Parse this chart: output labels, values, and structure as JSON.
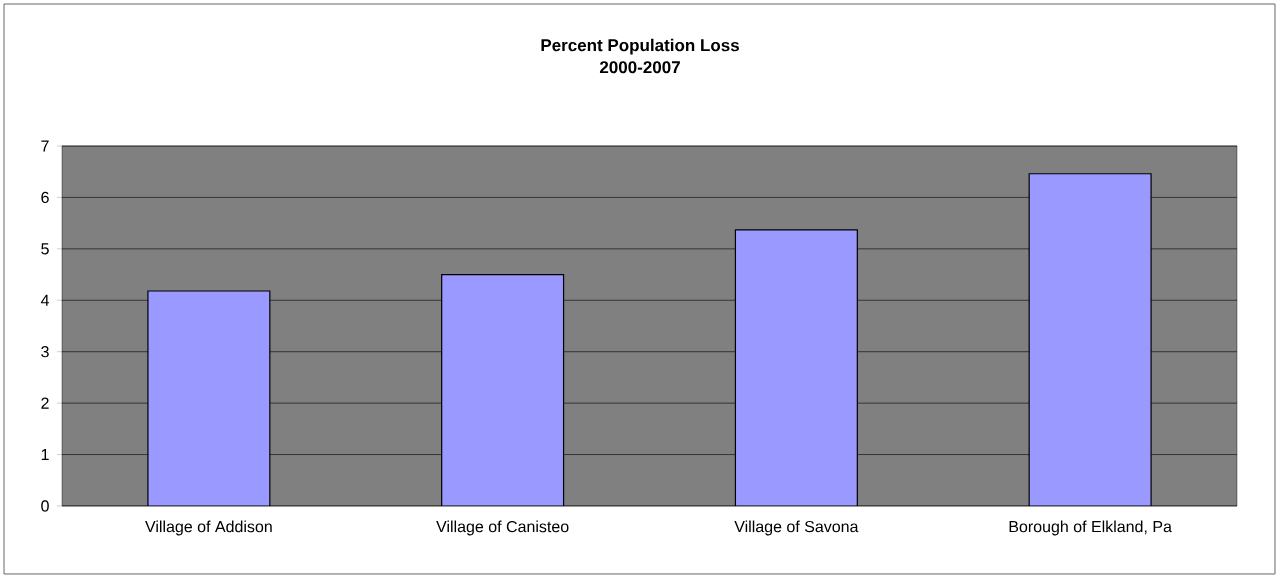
{
  "chart_data": {
    "type": "bar",
    "title": "Percent Population Loss",
    "subtitle": "2000-2007",
    "categories": [
      "Village of Addison",
      "Village of Canisteo",
      "Village of Savona",
      "Borough of Elkland, Pa"
    ],
    "values": [
      4.18,
      4.5,
      5.37,
      6.46
    ],
    "color": "#9999ff",
    "ylim": [
      0,
      7
    ],
    "yticks": [
      0,
      1,
      2,
      3,
      4,
      5,
      6,
      7
    ],
    "grid": "y"
  }
}
